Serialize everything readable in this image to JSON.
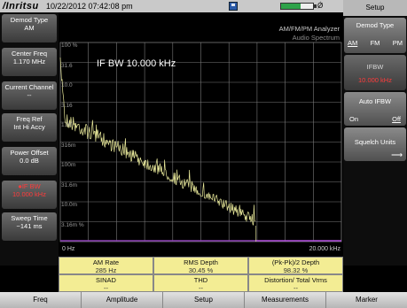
{
  "header": {
    "brand": "/Inritsu",
    "datetime": "10/22/2012 07:42:08 pm",
    "battery_label": "Ǿ",
    "battery_level_pct": 60
  },
  "graph": {
    "mode_line1": "AM/FM/PM Analyzer",
    "mode_line2": "Audio Spectrum",
    "ifbw_label": "IF BW 10.000 kHz",
    "y_labels": [
      "100 %",
      "31.6",
      "10.0",
      "3.16",
      "1.00",
      "316m",
      "100m",
      "31.6m",
      "10.0m",
      "3.16m %"
    ],
    "x_start": "0 Hz",
    "x_stop": "20.000 kHz",
    "colors": {
      "trace": "#e8e89a",
      "grid": "#7a7a7a",
      "baseline": "#8a3fb5"
    }
  },
  "left_panel": [
    {
      "label": "Demod Type",
      "value": "AM"
    },
    {
      "label": "Center Freq",
      "value": "1.170 MHz"
    },
    {
      "label": "Current Channel",
      "value": "--"
    },
    {
      "label": "Freq Ref",
      "value": "Int Hi Accy"
    },
    {
      "label": "Power Offset",
      "value": "0.0 dB"
    },
    {
      "label": "●IF BW",
      "value": "10.000 kHz",
      "active": true
    },
    {
      "label": "Sweep Time",
      "value": "~141 ms"
    }
  ],
  "measurements": {
    "am_rate": {
      "label": "AM Rate",
      "value": "285 Hz"
    },
    "rms_depth": {
      "label": "RMS Depth",
      "value": "30.45 %"
    },
    "pk_depth": {
      "label": "(Pk-Pk)/2 Depth",
      "value": "98.32 %"
    },
    "sinad": {
      "label": "SINAD",
      "value": "--"
    },
    "thd": {
      "label": "THD",
      "value": "--"
    },
    "distortion": {
      "label": "Distortion/ Total Vrms",
      "value": "--"
    }
  },
  "right_panel": {
    "title": "Setup",
    "demod_type": {
      "title": "Demod Type",
      "options": [
        "AM",
        "FM",
        "PM"
      ],
      "selected": "AM"
    },
    "ifbw": {
      "title": "IFBW",
      "value": "10.000 kHz"
    },
    "auto_ifbw": {
      "title": "Auto IFBW",
      "on": "On",
      "off": "Off",
      "selected": "Off"
    },
    "squelch": {
      "title": "Squelch Units",
      "arrow": "⟶"
    }
  },
  "bottom_menu": [
    "Freq",
    "Amplitude",
    "Setup",
    "Measurements",
    "Marker"
  ]
}
